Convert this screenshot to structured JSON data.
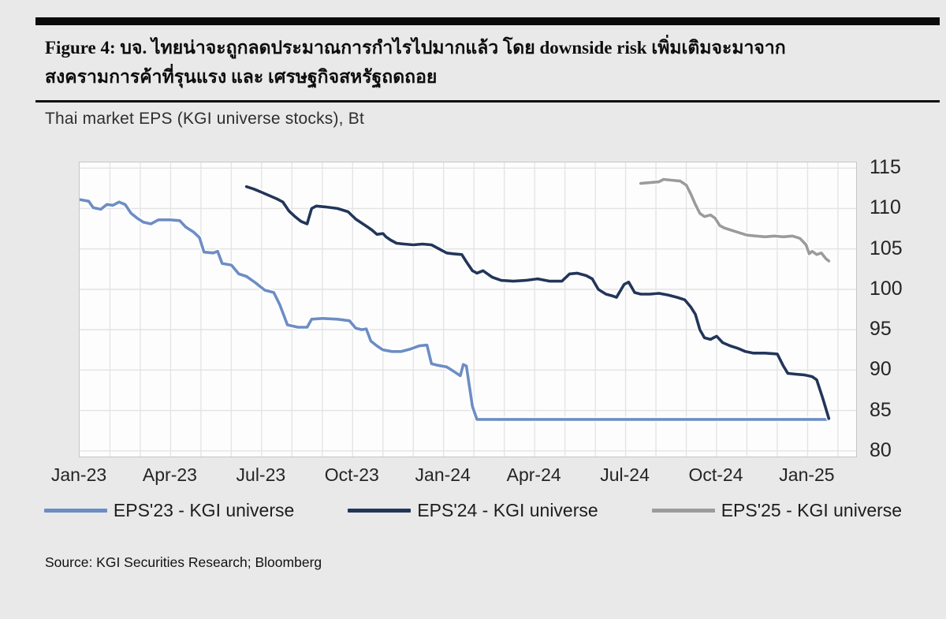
{
  "figure": {
    "title_line1": "Figure 4: บจ. ไทยน่าจะถูกลดประมาณการกำไรไปมากแล้ว โดย downside risk เพิ่มเติมจะมาจาก",
    "title_line2": "สงครามการค้าที่รุนแรง และ เศรษฐกิจสหรัฐถดถอย",
    "source": "Source: KGI Securities Research; Bloomberg"
  },
  "chart_data": {
    "type": "line",
    "title": "Thai market EPS (KGI universe stocks), Bt",
    "grid": true,
    "legend_position": "bottom",
    "plot_bg": "#fdfdfd",
    "grid_color": "#e3e3e3",
    "x_axis": {
      "unit": "months since Jan-2023",
      "range_months": [
        0,
        25.6
      ],
      "tick_months": [
        0,
        3,
        6,
        9,
        12,
        15,
        18,
        21,
        24
      ],
      "tick_labels": [
        "Jan-23",
        "Apr-23",
        "Jul-23",
        "Oct-23",
        "Jan-24",
        "Apr-24",
        "Jul-24",
        "Oct-24",
        "Jan-25"
      ]
    },
    "y_axis": {
      "side": "right",
      "range": [
        79.3,
        115.7
      ],
      "ticks": [
        115,
        110,
        105,
        100,
        95,
        90,
        85,
        80
      ]
    },
    "series": [
      {
        "name": "EPS'23 - KGI universe",
        "color": "#6d8dc4",
        "points": [
          [
            0,
            111.1
          ],
          [
            0.3,
            110.9
          ],
          [
            0.45,
            110.1
          ],
          [
            0.7,
            109.9
          ],
          [
            0.9,
            110.5
          ],
          [
            1.1,
            110.4
          ],
          [
            1.3,
            110.8
          ],
          [
            1.5,
            110.5
          ],
          [
            1.7,
            109.4
          ],
          [
            1.9,
            108.8
          ],
          [
            2.1,
            108.3
          ],
          [
            2.35,
            108.1
          ],
          [
            2.6,
            108.6
          ],
          [
            3.0,
            108.6
          ],
          [
            3.3,
            108.5
          ],
          [
            3.5,
            107.7
          ],
          [
            3.75,
            107.1
          ],
          [
            3.95,
            106.4
          ],
          [
            4.1,
            104.6
          ],
          [
            4.4,
            104.5
          ],
          [
            4.55,
            104.7
          ],
          [
            4.7,
            103.2
          ],
          [
            5.0,
            103.0
          ],
          [
            5.25,
            101.9
          ],
          [
            5.5,
            101.6
          ],
          [
            5.8,
            100.8
          ],
          [
            6.1,
            99.9
          ],
          [
            6.4,
            99.6
          ],
          [
            6.6,
            98.1
          ],
          [
            6.85,
            95.6
          ],
          [
            7.2,
            95.3
          ],
          [
            7.5,
            95.3
          ],
          [
            7.65,
            96.3
          ],
          [
            8.0,
            96.4
          ],
          [
            8.5,
            96.3
          ],
          [
            8.9,
            96.1
          ],
          [
            9.1,
            95.2
          ],
          [
            9.3,
            95.0
          ],
          [
            9.45,
            95.1
          ],
          [
            9.6,
            93.6
          ],
          [
            9.8,
            93.0
          ],
          [
            10.0,
            92.5
          ],
          [
            10.3,
            92.3
          ],
          [
            10.6,
            92.3
          ],
          [
            10.9,
            92.6
          ],
          [
            11.2,
            93.0
          ],
          [
            11.45,
            93.1
          ],
          [
            11.6,
            90.8
          ],
          [
            11.8,
            90.6
          ],
          [
            12.1,
            90.4
          ],
          [
            12.35,
            89.8
          ],
          [
            12.55,
            89.3
          ],
          [
            12.65,
            90.7
          ],
          [
            12.75,
            90.5
          ],
          [
            12.95,
            85.5
          ],
          [
            13.1,
            83.9
          ],
          [
            15,
            83.9
          ],
          [
            17,
            83.9
          ],
          [
            19,
            83.9
          ],
          [
            21,
            83.9
          ],
          [
            23,
            83.9
          ],
          [
            24.7,
            83.9
          ]
        ]
      },
      {
        "name": "EPS'24 - KGI universe",
        "color": "#22365a",
        "points": [
          [
            5.5,
            112.7
          ],
          [
            5.75,
            112.4
          ],
          [
            6.0,
            112.0
          ],
          [
            6.25,
            111.6
          ],
          [
            6.5,
            111.2
          ],
          [
            6.7,
            110.8
          ],
          [
            6.9,
            109.7
          ],
          [
            7.1,
            109.0
          ],
          [
            7.3,
            108.4
          ],
          [
            7.5,
            108.1
          ],
          [
            7.65,
            110.0
          ],
          [
            7.8,
            110.3
          ],
          [
            8.1,
            110.2
          ],
          [
            8.5,
            110.0
          ],
          [
            8.85,
            109.6
          ],
          [
            9.1,
            108.7
          ],
          [
            9.3,
            108.2
          ],
          [
            9.5,
            107.7
          ],
          [
            9.65,
            107.3
          ],
          [
            9.8,
            106.8
          ],
          [
            10.0,
            106.9
          ],
          [
            10.1,
            106.5
          ],
          [
            10.25,
            106.1
          ],
          [
            10.45,
            105.7
          ],
          [
            10.7,
            105.6
          ],
          [
            11.0,
            105.5
          ],
          [
            11.3,
            105.6
          ],
          [
            11.6,
            105.5
          ],
          [
            11.85,
            105.0
          ],
          [
            12.1,
            104.5
          ],
          [
            12.3,
            104.4
          ],
          [
            12.6,
            104.3
          ],
          [
            12.75,
            103.4
          ],
          [
            12.95,
            102.3
          ],
          [
            13.1,
            102.0
          ],
          [
            13.3,
            102.3
          ],
          [
            13.6,
            101.5
          ],
          [
            13.9,
            101.1
          ],
          [
            14.3,
            101.0
          ],
          [
            14.7,
            101.1
          ],
          [
            15.1,
            101.3
          ],
          [
            15.5,
            101.0
          ],
          [
            15.9,
            101.0
          ],
          [
            16.15,
            101.9
          ],
          [
            16.4,
            102.0
          ],
          [
            16.7,
            101.7
          ],
          [
            16.9,
            101.3
          ],
          [
            17.1,
            100.0
          ],
          [
            17.35,
            99.4
          ],
          [
            17.55,
            99.2
          ],
          [
            17.7,
            99.0
          ],
          [
            17.95,
            100.6
          ],
          [
            18.1,
            100.9
          ],
          [
            18.3,
            99.6
          ],
          [
            18.5,
            99.4
          ],
          [
            18.8,
            99.4
          ],
          [
            19.1,
            99.5
          ],
          [
            19.4,
            99.3
          ],
          [
            19.7,
            99.0
          ],
          [
            19.95,
            98.7
          ],
          [
            20.15,
            97.8
          ],
          [
            20.3,
            96.9
          ],
          [
            20.45,
            95.0
          ],
          [
            20.6,
            94.0
          ],
          [
            20.8,
            93.8
          ],
          [
            21.0,
            94.2
          ],
          [
            21.2,
            93.4
          ],
          [
            21.45,
            93.0
          ],
          [
            21.7,
            92.7
          ],
          [
            21.95,
            92.3
          ],
          [
            22.2,
            92.1
          ],
          [
            22.6,
            92.1
          ],
          [
            23.0,
            92.0
          ],
          [
            23.2,
            90.5
          ],
          [
            23.35,
            89.6
          ],
          [
            23.6,
            89.5
          ],
          [
            23.9,
            89.4
          ],
          [
            24.15,
            89.2
          ],
          [
            24.3,
            88.8
          ],
          [
            24.5,
            86.5
          ],
          [
            24.7,
            84.0
          ]
        ]
      },
      {
        "name": "EPS'25 - KGI universe",
        "color": "#9b9b9b",
        "points": [
          [
            18.5,
            113.1
          ],
          [
            18.8,
            113.2
          ],
          [
            19.1,
            113.3
          ],
          [
            19.25,
            113.6
          ],
          [
            19.5,
            113.5
          ],
          [
            19.8,
            113.4
          ],
          [
            20.0,
            112.9
          ],
          [
            20.15,
            111.8
          ],
          [
            20.3,
            110.5
          ],
          [
            20.45,
            109.4
          ],
          [
            20.6,
            109.0
          ],
          [
            20.8,
            109.2
          ],
          [
            20.95,
            108.8
          ],
          [
            21.1,
            107.9
          ],
          [
            21.25,
            107.6
          ],
          [
            21.5,
            107.3
          ],
          [
            21.75,
            107.0
          ],
          [
            22.0,
            106.7
          ],
          [
            22.3,
            106.6
          ],
          [
            22.6,
            106.5
          ],
          [
            22.9,
            106.6
          ],
          [
            23.2,
            106.5
          ],
          [
            23.5,
            106.6
          ],
          [
            23.75,
            106.3
          ],
          [
            23.95,
            105.5
          ],
          [
            24.05,
            104.4
          ],
          [
            24.15,
            104.7
          ],
          [
            24.3,
            104.3
          ],
          [
            24.45,
            104.5
          ],
          [
            24.6,
            103.8
          ],
          [
            24.7,
            103.5
          ]
        ]
      }
    ]
  }
}
